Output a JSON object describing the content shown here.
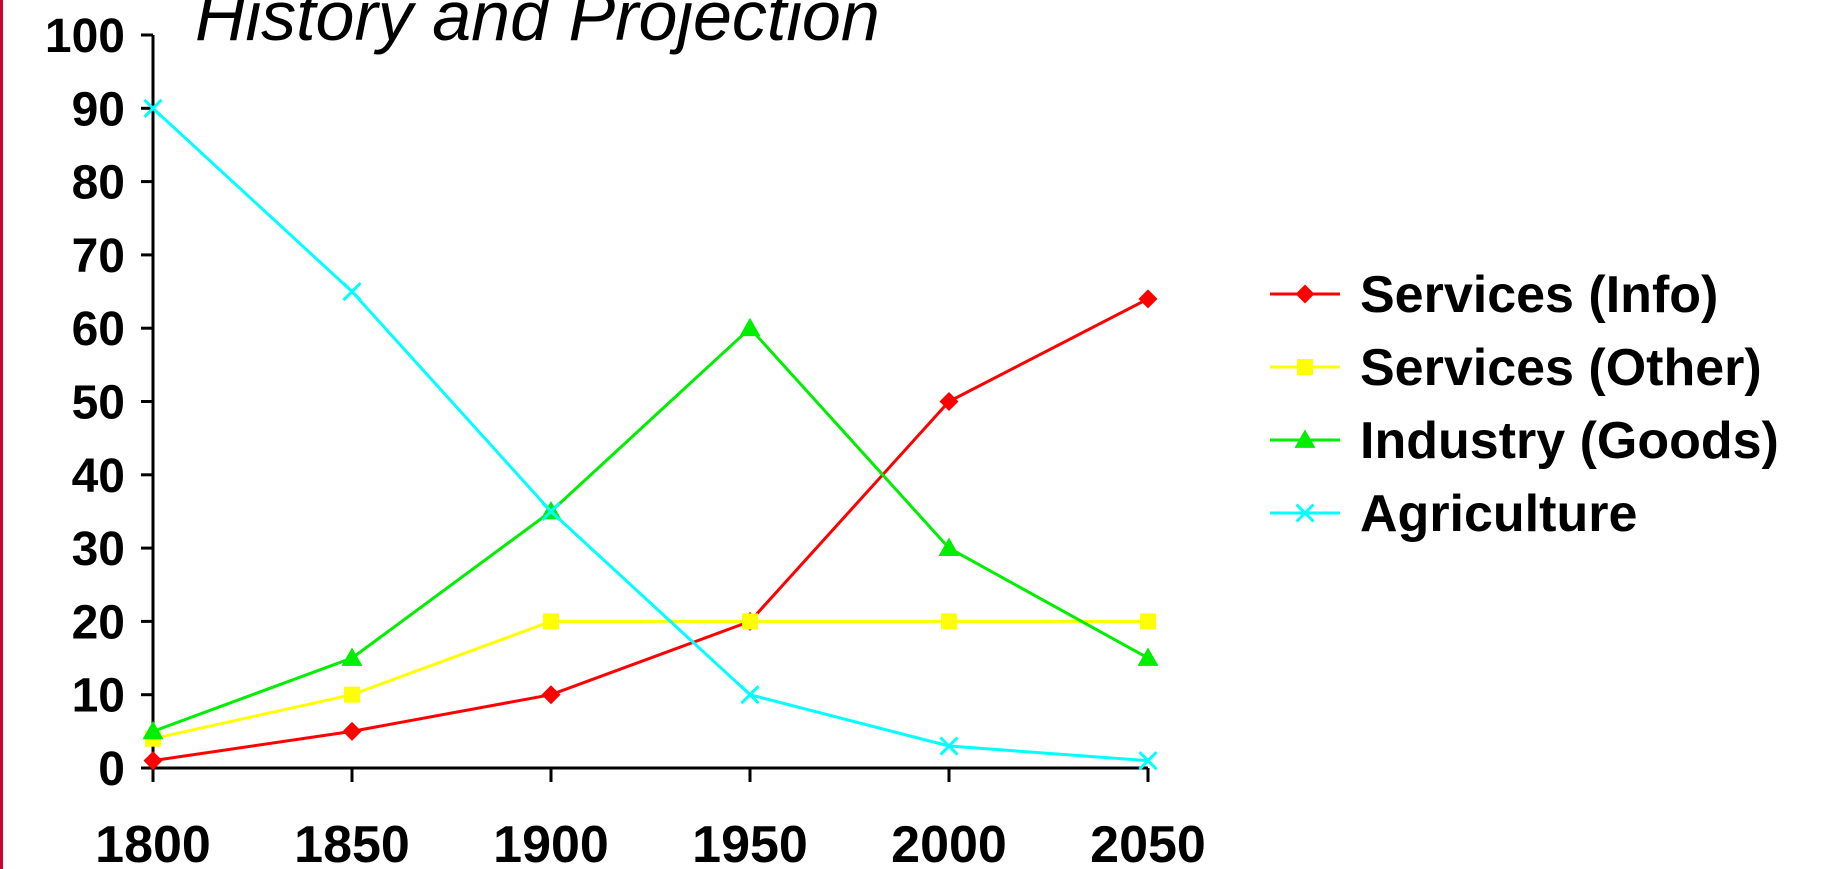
{
  "chart_data": {
    "type": "line",
    "title": "History and Projection",
    "xlabel": "",
    "ylabel": "",
    "x": [
      1800,
      1850,
      1900,
      1950,
      2000,
      2050
    ],
    "x_tick_labels": [
      "1800",
      "1850",
      "1900",
      "1950",
      "2000",
      "2050"
    ],
    "y_tick_labels": [
      "0",
      "10",
      "20",
      "30",
      "40",
      "50",
      "60",
      "70",
      "80",
      "90",
      "100"
    ],
    "ylim": [
      0,
      100
    ],
    "grid": false,
    "legend_position": "right",
    "series": [
      {
        "name": "Services (Info)",
        "color": "#ff0000",
        "marker": "diamond",
        "values": [
          1,
          5,
          10,
          20,
          50,
          64
        ]
      },
      {
        "name": "Services (Other)",
        "color": "#ffff00",
        "marker": "square",
        "values": [
          4,
          10,
          20,
          20,
          20,
          20
        ]
      },
      {
        "name": "Industry (Goods)",
        "color": "#00ee00",
        "marker": "triangle",
        "values": [
          5,
          15,
          35,
          60,
          30,
          15
        ]
      },
      {
        "name": "Agriculture",
        "color": "#00ffff",
        "marker": "x",
        "values": [
          90,
          65,
          35,
          10,
          3,
          1
        ]
      }
    ]
  }
}
